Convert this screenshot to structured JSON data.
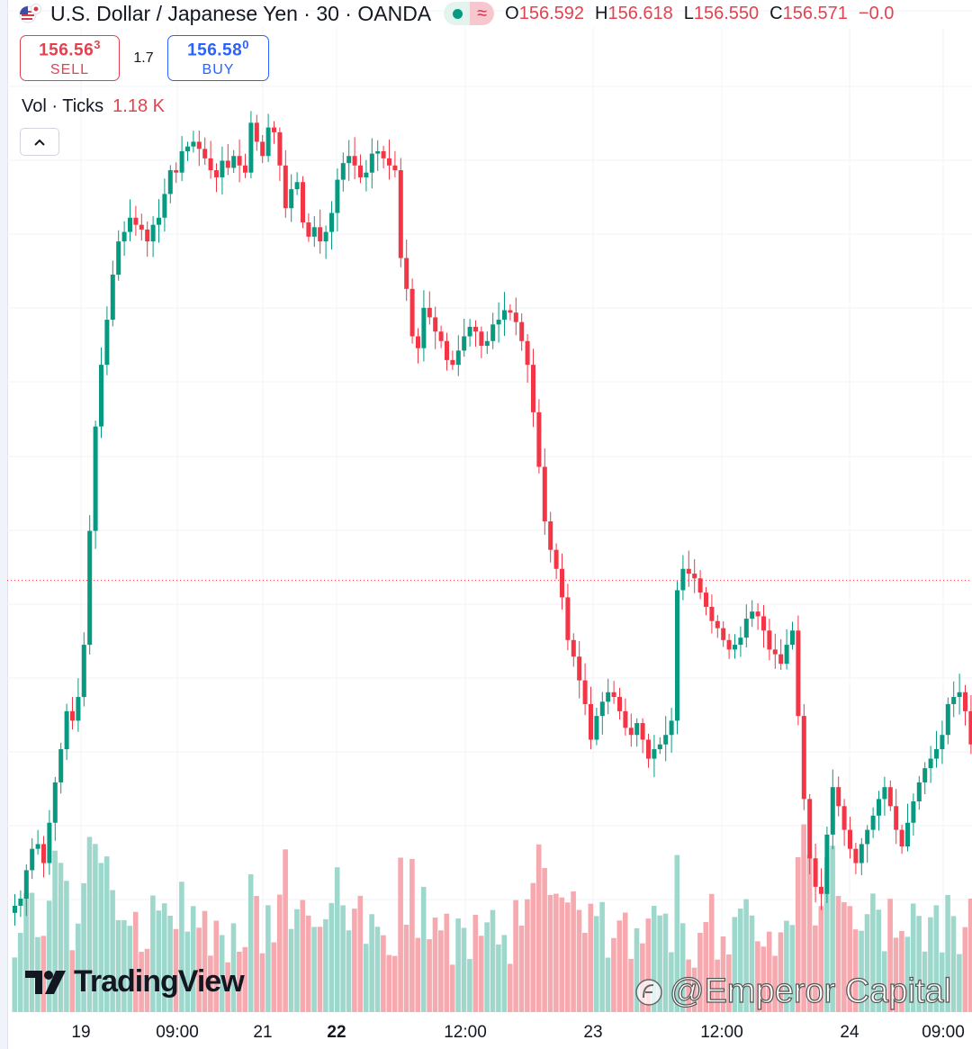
{
  "header": {
    "title": "U.S. Dollar / Japanese Yen · 30 · OANDA",
    "flag_icon": "us-jp-flag-icon",
    "status_icon": "market-open-dot-icon",
    "wave_glyph": "≈",
    "ohlc": [
      {
        "key": "O",
        "value": "156.592"
      },
      {
        "key": "H",
        "value": "156.618"
      },
      {
        "key": "L",
        "value": "156.550"
      },
      {
        "key": "C",
        "value": "156.571"
      },
      {
        "key": "",
        "value": "−0.0"
      }
    ]
  },
  "trade": {
    "sell_price_main": "156.56",
    "sell_price_sup": "3",
    "sell_label": "SELL",
    "spread": "1.7",
    "buy_price_main": "156.58",
    "buy_price_sup": "0",
    "buy_label": "BUY"
  },
  "volume_legend": {
    "label": "Vol · Ticks",
    "value": "1.18 K"
  },
  "collapse_icon": "chevron-up-icon",
  "branding": {
    "logo_text": "TradingView"
  },
  "watermark": {
    "text": "@Emperor Capital"
  },
  "colors": {
    "up": "#089981",
    "down": "#f23645",
    "up_vol": "#9ed8cc",
    "down_vol": "#f6a9ae",
    "current_line": "#f23645"
  },
  "chart_data": {
    "type": "candlestick",
    "title": "U.S. Dollar / Japanese Yen · 30 · OANDA",
    "series": [
      {
        "name": "USDJPY",
        "close_path": [
          155.2,
          155.23,
          155.35,
          155.44,
          155.46,
          155.38,
          155.55,
          155.72,
          155.86,
          156.02,
          155.98,
          156.08,
          156.3,
          156.78,
          157.22,
          157.48,
          157.67,
          157.86,
          158.0,
          158.04,
          158.1,
          158.07,
          158.05,
          158.0,
          158.07,
          158.1,
          158.2,
          158.3,
          158.29,
          158.38,
          158.4,
          158.42,
          158.39,
          158.35,
          158.3,
          158.27,
          158.34,
          158.31,
          158.36,
          158.32,
          158.29,
          158.5,
          158.42,
          158.36,
          158.48,
          158.46,
          158.32,
          158.14,
          158.22,
          158.25,
          158.08,
          158.02,
          158.06,
          158.0,
          158.04,
          158.12,
          158.26,
          158.33,
          158.36,
          158.32,
          158.27,
          158.29,
          158.37,
          158.38,
          158.35,
          158.32,
          158.3,
          157.93,
          157.8,
          157.6,
          157.55,
          157.72,
          157.68,
          157.62,
          157.58,
          157.5,
          157.48,
          157.54,
          157.6,
          157.64,
          157.62,
          157.56,
          157.58,
          157.65,
          157.67,
          157.71,
          157.7,
          157.66,
          157.58,
          157.48,
          157.28,
          157.05,
          156.82,
          156.7,
          156.62,
          156.5,
          156.32,
          156.25,
          156.15,
          156.05,
          155.9,
          156.0,
          156.06,
          156.1,
          156.08,
          156.02,
          155.95,
          155.92,
          155.97,
          155.9,
          155.82,
          155.86,
          155.88,
          155.92,
          155.98,
          156.53,
          156.62,
          156.6,
          156.58,
          156.52,
          156.46,
          156.4,
          156.37,
          156.32,
          156.28,
          156.3,
          156.33,
          156.41,
          156.44,
          156.42,
          156.36,
          156.28,
          156.26,
          156.22,
          156.3,
          156.36,
          156.0,
          155.65,
          155.4,
          155.28,
          155.25,
          155.5,
          155.7,
          155.62,
          155.52,
          155.44,
          155.38,
          155.46,
          155.52,
          155.58,
          155.65,
          155.7,
          155.62,
          155.52,
          155.45,
          155.55,
          155.64,
          155.72,
          155.78,
          155.82,
          155.86,
          155.92,
          156.05,
          156.08,
          156.1,
          156.02,
          155.88,
          155.57,
          155.64,
          155.72
        ]
      },
      {
        "name": "Volume (Ticks)"
      }
    ],
    "x_tick_labels": [
      "19",
      "09:00",
      "21",
      "22",
      "12:00",
      "23",
      "12:00",
      "24",
      "09:00"
    ],
    "bold_tick_labels": [
      "22"
    ],
    "price_range": [
      154.9,
      158.6
    ],
    "current_price": 156.571,
    "volume_legend": "Vol · Ticks 1.18 K"
  }
}
